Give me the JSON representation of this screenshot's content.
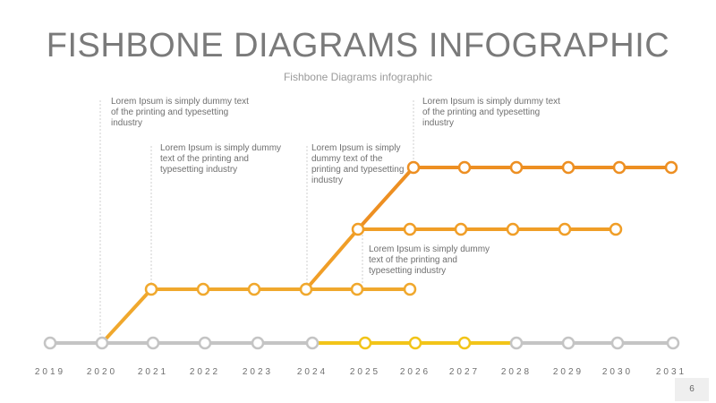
{
  "title": "FISHBONE DIAGRAMS INFOGRAPHIC",
  "subtitle": "Fishbone Diagrams infographic",
  "notes": [
    "Lorem Ipsum is simply dummy text of the printing and typesetting industry",
    "Lorem Ipsum is simply dummy text of the printing and typesetting industry",
    "Lorem Ipsum is simply dummy text of the printing and typesetting industry",
    "Lorem Ipsum is simply dummy text of the printing and typesetting industry",
    "Lorem Ipsum is simply dummy text of the printing and typesetting industry"
  ],
  "years": [
    "2019",
    "2020",
    "2021",
    "2022",
    "2023",
    "2024",
    "2025",
    "2026",
    "2027",
    "2028",
    "2029",
    "2030",
    "2031"
  ],
  "page_number": "6",
  "colors": {
    "base": "#c4c4c4",
    "highlight": "#f2c418",
    "orange_light": "#f0a82d",
    "orange_mid": "#f09e27",
    "orange_dark": "#ed8f22"
  }
}
